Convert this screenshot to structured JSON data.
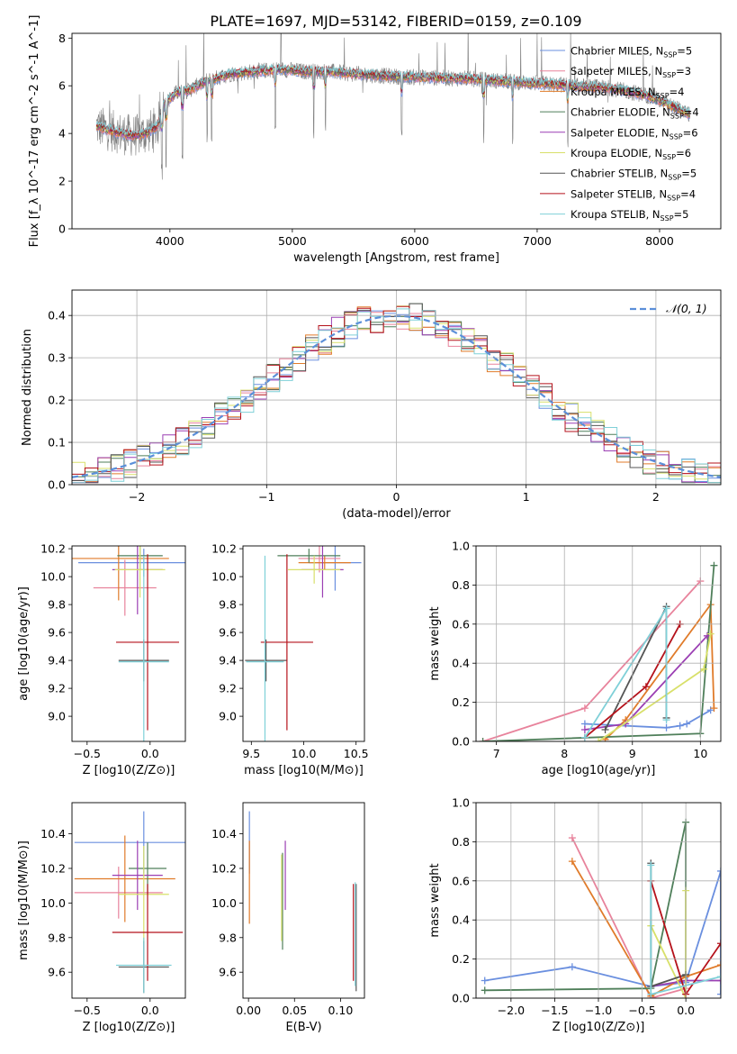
{
  "figure": {
    "title": "PLATE=1697, MJD=53142, FIBERID=0159, z=0.109"
  },
  "models": [
    {
      "name": "Chabrier MILES, N$_{SSP}$=5",
      "label": "Chabrier MILES, N",
      "nssp": "5",
      "color": "#6a8fdf"
    },
    {
      "name": "Salpeter MILES, N$_{SSP}$=3",
      "label": "Salpeter MILES, N",
      "nssp": "3",
      "color": "#e8839c"
    },
    {
      "name": "Kroupa MILES, N$_{SSP}$=4",
      "label": "Kroupa MILES, N",
      "nssp": "4",
      "color": "#e07b2a"
    },
    {
      "name": "Chabrier ELODIE, N$_{SSP}$=4",
      "label": "Chabrier ELODIE, N",
      "nssp": "4",
      "color": "#4f7f5a"
    },
    {
      "name": "Salpeter ELODIE, N$_{SSP}$=6",
      "label": "Salpeter ELODIE, N",
      "nssp": "6",
      "color": "#9b3fb3"
    },
    {
      "name": "Kroupa ELODIE, N$_{SSP}$=6",
      "label": "Kroupa ELODIE, N",
      "nssp": "6",
      "color": "#d8e06a"
    },
    {
      "name": "Chabrier STELIB, N$_{SSP}$=5",
      "label": "Chabrier STELIB, N",
      "nssp": "5",
      "color": "#555555"
    },
    {
      "name": "Salpeter STELIB, N$_{SSP}$=4",
      "label": "Salpeter STELIB, N",
      "nssp": "4",
      "color": "#b5121b"
    },
    {
      "name": "Kroupa STELIB, N$_{SSP}$=5",
      "label": "Kroupa STELIB, N",
      "nssp": "5",
      "color": "#7fd0d8"
    }
  ],
  "chart_data": [
    {
      "type": "line",
      "id": "spectrum",
      "title": "PLATE=1697, MJD=53142, FIBERID=0159, z=0.109",
      "xlabel": "wavelength [Angstrom, rest frame]",
      "ylabel": "Flux [f_λ 10^-17 erg cm^-2 s^-1 A^-1]",
      "xlim": [
        3200,
        8500
      ],
      "ylim": [
        0,
        8.2
      ],
      "xticks": [
        4000,
        5000,
        6000,
        7000,
        8000
      ],
      "yticks": [
        0,
        2,
        4,
        6,
        8
      ],
      "grid": false,
      "legend": "top-right",
      "data_color": "#808080",
      "continuum_x": [
        3400,
        3500,
        3600,
        3700,
        3800,
        3900,
        3950,
        4050,
        4150,
        4300,
        4500,
        4700,
        4900,
        5100,
        5300,
        5500,
        5800,
        6100,
        6400,
        6700,
        7000,
        7300,
        7600,
        7900,
        8250
      ],
      "continuum_y": [
        4.3,
        4.15,
        4.0,
        3.9,
        4.0,
        4.3,
        5.2,
        5.7,
        5.8,
        6.2,
        6.5,
        6.6,
        6.7,
        6.6,
        6.6,
        6.5,
        6.4,
        6.35,
        6.3,
        6.2,
        6.1,
        6.0,
        5.9,
        5.6,
        4.8
      ],
      "absorption_lines": [
        3934,
        3969,
        4102,
        4304,
        4341,
        4861,
        5175,
        5270,
        5893,
        6563,
        6800,
        7250
      ]
    },
    {
      "type": "bar",
      "id": "residuals",
      "xlabel": "(data-model)/error",
      "ylabel": "Normed distribution",
      "xlim": [
        -2.5,
        2.5
      ],
      "ylim": [
        0,
        0.46
      ],
      "xticks": [
        -2,
        -1,
        0,
        1,
        2
      ],
      "yticks": [
        0.0,
        0.1,
        0.2,
        0.3,
        0.4
      ],
      "grid": true,
      "bin_width": 0.1,
      "normal_label": "𝒩(0, 1)",
      "normal_color": "#5b8fd9",
      "legend": "top-right"
    },
    {
      "type": "scatter",
      "id": "age-vs-Z",
      "xlabel": "Z [log10(Z/Z⊙)]",
      "ylabel": "age [log10(age/yr)]",
      "xlim": [
        -0.62,
        0.28
      ],
      "ylim": [
        8.82,
        10.22
      ],
      "xticks": [
        -0.5,
        0.0
      ],
      "yticks": [
        9.0,
        9.2,
        9.4,
        9.6,
        9.8,
        10.0,
        10.2
      ],
      "points": [
        {
          "model": 0,
          "x": -0.05,
          "y": 10.1,
          "xerr": 0.52,
          "yerr": 0.1
        },
        {
          "model": 1,
          "x": -0.2,
          "y": 9.92,
          "xerr": 0.25,
          "yerr": 0.2
        },
        {
          "model": 2,
          "x": -0.25,
          "y": 10.13,
          "xerr": 0.4,
          "yerr": 0.3
        },
        {
          "model": 3,
          "x": -0.08,
          "y": 10.15,
          "xerr": 0.18,
          "yerr": 0.1
        },
        {
          "model": 4,
          "x": -0.1,
          "y": 10.05,
          "xerr": 0.2,
          "yerr": 0.32
        },
        {
          "model": 5,
          "x": -0.08,
          "y": 10.05,
          "xerr": 0.2,
          "yerr": 0.2
        },
        {
          "model": 6,
          "x": -0.05,
          "y": 9.4,
          "xerr": 0.2,
          "yerr": 0.15
        },
        {
          "model": 7,
          "x": -0.02,
          "y": 9.53,
          "xerr": 0.25,
          "yerr": 0.63
        },
        {
          "model": 8,
          "x": -0.05,
          "y": 9.39,
          "xerr": 0.2,
          "yerr": 0.76
        }
      ]
    },
    {
      "type": "scatter",
      "id": "age-vs-mass",
      "xlabel": "mass [log10(M/M⊙)]",
      "ylabel": "",
      "xlim": [
        9.42,
        10.58
      ],
      "ylim": [
        8.82,
        10.22
      ],
      "xticks": [
        9.5,
        10.0,
        10.5
      ],
      "yticks": [
        9.0,
        9.2,
        9.4,
        9.6,
        9.8,
        10.0,
        10.2
      ],
      "points": [
        {
          "model": 0,
          "x": 10.3,
          "y": 10.1,
          "xerr": 0.25,
          "yerr": 0.2
        },
        {
          "model": 1,
          "x": 10.15,
          "y": 10.13,
          "xerr": 0.2,
          "yerr": 0.1
        },
        {
          "model": 2,
          "x": 10.2,
          "y": 10.1,
          "xerr": 0.25,
          "yerr": 0.05
        },
        {
          "model": 3,
          "x": 10.05,
          "y": 10.15,
          "xerr": 0.3,
          "yerr": 0.05
        },
        {
          "model": 4,
          "x": 10.18,
          "y": 10.05,
          "xerr": 0.2,
          "yerr": 0.2
        },
        {
          "model": 5,
          "x": 10.1,
          "y": 10.05,
          "xerr": 0.25,
          "yerr": 0.1
        },
        {
          "model": 6,
          "x": 9.64,
          "y": 9.4,
          "xerr": 0.2,
          "yerr": 0.15
        },
        {
          "model": 7,
          "x": 9.84,
          "y": 9.53,
          "xerr": 0.25,
          "yerr": 0.63
        },
        {
          "model": 8,
          "x": 9.63,
          "y": 9.39,
          "xerr": 0.18,
          "yerr": 0.76
        }
      ]
    },
    {
      "type": "line",
      "id": "mass-weight-vs-age",
      "xlabel": "age [log10(age/yr)]",
      "ylabel": "mass weight",
      "xlim": [
        6.7,
        10.3
      ],
      "ylim": [
        0,
        1.0
      ],
      "xticks": [
        7,
        8,
        9,
        10
      ],
      "yticks": [
        0.0,
        0.2,
        0.4,
        0.6,
        0.8,
        1.0
      ],
      "grid": true,
      "series": [
        {
          "model": 0,
          "x": [
            8.3,
            9.5,
            9.7,
            9.8,
            10.15
          ],
          "y": [
            0.09,
            0.07,
            0.08,
            0.09,
            0.16
          ]
        },
        {
          "model": 1,
          "x": [
            6.8,
            8.3,
            10.0
          ],
          "y": [
            0.0,
            0.17,
            0.82
          ]
        },
        {
          "model": 2,
          "x": [
            8.6,
            8.9,
            10.15,
            10.2
          ],
          "y": [
            0.01,
            0.11,
            0.7,
            0.17
          ]
        },
        {
          "model": 3,
          "x": [
            6.8,
            10.0,
            10.2
          ],
          "y": [
            0.0,
            0.04,
            0.9
          ]
        },
        {
          "model": 4,
          "x": [
            8.3,
            8.9,
            10.1
          ],
          "y": [
            0.06,
            0.09,
            0.54
          ]
        },
        {
          "model": 5,
          "x": [
            8.5,
            10.05,
            10.15
          ],
          "y": [
            0.0,
            0.37,
            0.55
          ]
        },
        {
          "model": 6,
          "x": [
            8.6,
            9.5,
            9.5
          ],
          "y": [
            0.06,
            0.69,
            0.12
          ]
        },
        {
          "model": 7,
          "x": [
            8.3,
            9.2,
            9.7
          ],
          "y": [
            0.02,
            0.28,
            0.6
          ]
        },
        {
          "model": 8,
          "x": [
            8.3,
            9.5,
            9.5
          ],
          "y": [
            0.02,
            0.68,
            0.11
          ]
        }
      ]
    },
    {
      "type": "scatter",
      "id": "mass-vs-Z",
      "xlabel": "Z [log10(Z/Z⊙)]",
      "ylabel": "mass [log10(M/M⊙)]",
      "xlim": [
        -0.62,
        0.28
      ],
      "ylim": [
        9.45,
        10.58
      ],
      "xticks": [
        -0.5,
        0.0
      ],
      "yticks": [
        9.6,
        9.8,
        10.0,
        10.2,
        10.4
      ],
      "points": [
        {
          "model": 0,
          "x": -0.05,
          "y": 10.35,
          "xerr": 0.55,
          "yerr": 0.18
        },
        {
          "model": 1,
          "x": -0.25,
          "y": 10.06,
          "xerr": 0.35,
          "yerr": 0.15
        },
        {
          "model": 2,
          "x": -0.2,
          "y": 10.14,
          "xerr": 0.4,
          "yerr": 0.25
        },
        {
          "model": 3,
          "x": -0.02,
          "y": 10.2,
          "xerr": 0.15,
          "yerr": 0.15
        },
        {
          "model": 4,
          "x": -0.1,
          "y": 10.16,
          "xerr": 0.2,
          "yerr": 0.2
        },
        {
          "model": 5,
          "x": -0.05,
          "y": 10.05,
          "xerr": 0.2,
          "yerr": 0.28
        },
        {
          "model": 6,
          "x": -0.05,
          "y": 9.63,
          "xerr": 0.2,
          "yerr": 0.15
        },
        {
          "model": 7,
          "x": -0.02,
          "y": 9.83,
          "xerr": 0.28,
          "yerr": 0.28
        },
        {
          "model": 8,
          "x": -0.05,
          "y": 9.64,
          "xerr": 0.22,
          "yerr": 0.16
        }
      ]
    },
    {
      "type": "scatter",
      "id": "mass-vs-ebv",
      "xlabel": "E(B-V)",
      "ylabel": "",
      "xlim": [
        -0.006,
        0.126
      ],
      "ylim": [
        9.45,
        10.58
      ],
      "xticks": [
        0.0,
        0.05,
        0.1
      ],
      "xticklabels": [
        "0.00",
        "0.05",
        "0.10"
      ],
      "yticks": [
        9.6,
        9.8,
        10.0,
        10.2,
        10.4
      ],
      "points": [
        {
          "model": 0,
          "x": 0.001,
          "y": 10.35,
          "yerr": 0.18
        },
        {
          "model": 2,
          "x": 0.001,
          "y": 10.12,
          "yerr": 0.24
        },
        {
          "model": 3,
          "x": 0.037,
          "y": 10.01,
          "yerr": 0.28
        },
        {
          "model": 4,
          "x": 0.04,
          "y": 10.16,
          "yerr": 0.2
        },
        {
          "model": 5,
          "x": 0.036,
          "y": 10.03,
          "yerr": 0.25
        },
        {
          "model": 6,
          "x": 0.117,
          "y": 9.8,
          "yerr": 0.31
        },
        {
          "model": 7,
          "x": 0.114,
          "y": 9.83,
          "yerr": 0.28
        },
        {
          "model": 8,
          "x": 0.116,
          "y": 9.82,
          "yerr": 0.3
        }
      ]
    },
    {
      "type": "line",
      "id": "mass-weight-vs-Z",
      "xlabel": "Z [log10(Z/Z⊙)]",
      "ylabel": "mass weight",
      "xlim": [
        -2.4,
        0.4
      ],
      "ylim": [
        0,
        1.0
      ],
      "xticks": [
        -2.0,
        -1.5,
        -1.0,
        -0.5,
        0.0
      ],
      "yticks": [
        0.0,
        0.2,
        0.4,
        0.6,
        0.8,
        1.0
      ],
      "grid": true,
      "series": [
        {
          "model": 0,
          "x": [
            -2.3,
            -1.3,
            -0.4,
            0.0,
            0.4,
            0.4
          ],
          "y": [
            0.09,
            0.16,
            0.06,
            0.08,
            0.65,
            0.02
          ]
        },
        {
          "model": 1,
          "x": [
            -1.3,
            -0.4,
            0.0
          ],
          "y": [
            0.82,
            0.0,
            0.05
          ]
        },
        {
          "model": 2,
          "x": [
            -1.3,
            -0.4,
            0.0,
            0.4
          ],
          "y": [
            0.7,
            0.01,
            0.11,
            0.17
          ]
        },
        {
          "model": 3,
          "x": [
            -2.3,
            -0.4,
            0.0,
            0.0
          ],
          "y": [
            0.04,
            0.05,
            0.9,
            0.09
          ]
        },
        {
          "model": 4,
          "x": [
            -0.4,
            0.0,
            0.4
          ],
          "y": [
            0.06,
            0.09,
            0.09
          ]
        },
        {
          "model": 5,
          "x": [
            -0.4,
            0.0,
            0.0
          ],
          "y": [
            0.37,
            0.0,
            0.55
          ]
        },
        {
          "model": 6,
          "x": [
            -0.4,
            -0.4,
            0.0
          ],
          "y": [
            0.69,
            0.06,
            0.12
          ]
        },
        {
          "model": 7,
          "x": [
            -0.4,
            0.0,
            0.4
          ],
          "y": [
            0.6,
            0.02,
            0.28
          ]
        },
        {
          "model": 8,
          "x": [
            -0.4,
            -0.4,
            0.4
          ],
          "y": [
            0.68,
            0.02,
            0.11
          ]
        }
      ]
    }
  ]
}
